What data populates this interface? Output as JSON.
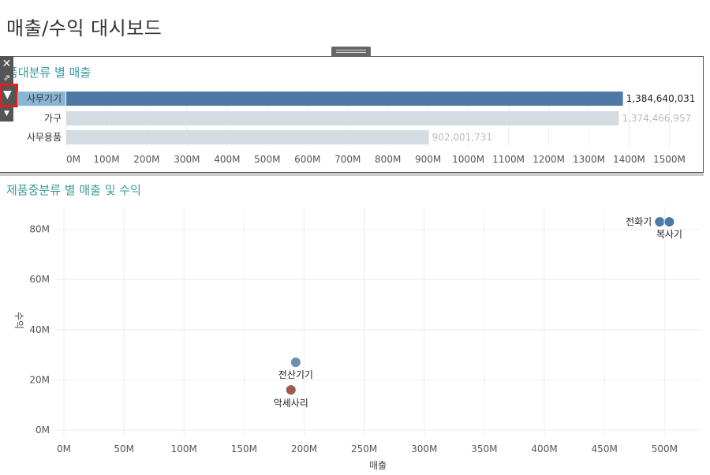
{
  "page_title": "매출/수익 대시보드",
  "panel1": {
    "title": "제품대분류 별 매출",
    "title_visible": "품대분류 별 매출"
  },
  "panel2": {
    "title": "제품중분류 별 매출 및 수익"
  },
  "toolbar": {
    "close_icon": "close-icon",
    "popout_icon": "popout-icon",
    "filter_icon": "filter-icon",
    "dropdown_icon": "dropdown-icon"
  },
  "colors": {
    "highlight_bar": "#4e79a7",
    "dim_bar": "#d3dbe3",
    "selected_label_bg": "#8ab6d6",
    "accessory_point": "#a05a4a",
    "teal_title": "#3b9c9c",
    "filter_highlight": "#e0201e"
  },
  "chart_data": [
    {
      "type": "bar",
      "orientation": "horizontal",
      "title": "제품대분류 별 매출",
      "categories": [
        "사무기기",
        "가구",
        "사무용품"
      ],
      "values": [
        1384640031,
        1374466957,
        902001731
      ],
      "value_labels": [
        "1,384,640,031",
        "1,374,466,957",
        "902,001,731"
      ],
      "selected": "사무기기",
      "xlim": [
        0,
        1560000000
      ],
      "xticks": [
        "0M",
        "100M",
        "200M",
        "300M",
        "400M",
        "500M",
        "600M",
        "700M",
        "800M",
        "900M",
        "1000M",
        "1100M",
        "1200M",
        "1300M",
        "1400M",
        "1500M"
      ],
      "grid": true
    },
    {
      "type": "scatter",
      "title": "제품중분류 별 매출 및 수익",
      "xlabel": "매출",
      "ylabel": "수익",
      "xlim": [
        0,
        530
      ],
      "ylim": [
        0,
        89
      ],
      "xticks": [
        "0M",
        "50M",
        "100M",
        "150M",
        "200M",
        "250M",
        "300M",
        "350M",
        "400M",
        "450M",
        "500M"
      ],
      "yticks": [
        "0M",
        "20M",
        "40M",
        "60M",
        "80M"
      ],
      "points": [
        {
          "label": "전화기",
          "x": 496,
          "y": 83,
          "color": "#4e79a7"
        },
        {
          "label": "복사기",
          "x": 504,
          "y": 83,
          "color": "#4e79a7"
        },
        {
          "label": "전산기기",
          "x": 193,
          "y": 27,
          "color": "#6b8fb5"
        },
        {
          "label": "악세사리",
          "x": 189,
          "y": 16,
          "color": "#a05a4a"
        }
      ],
      "grid": true
    }
  ]
}
